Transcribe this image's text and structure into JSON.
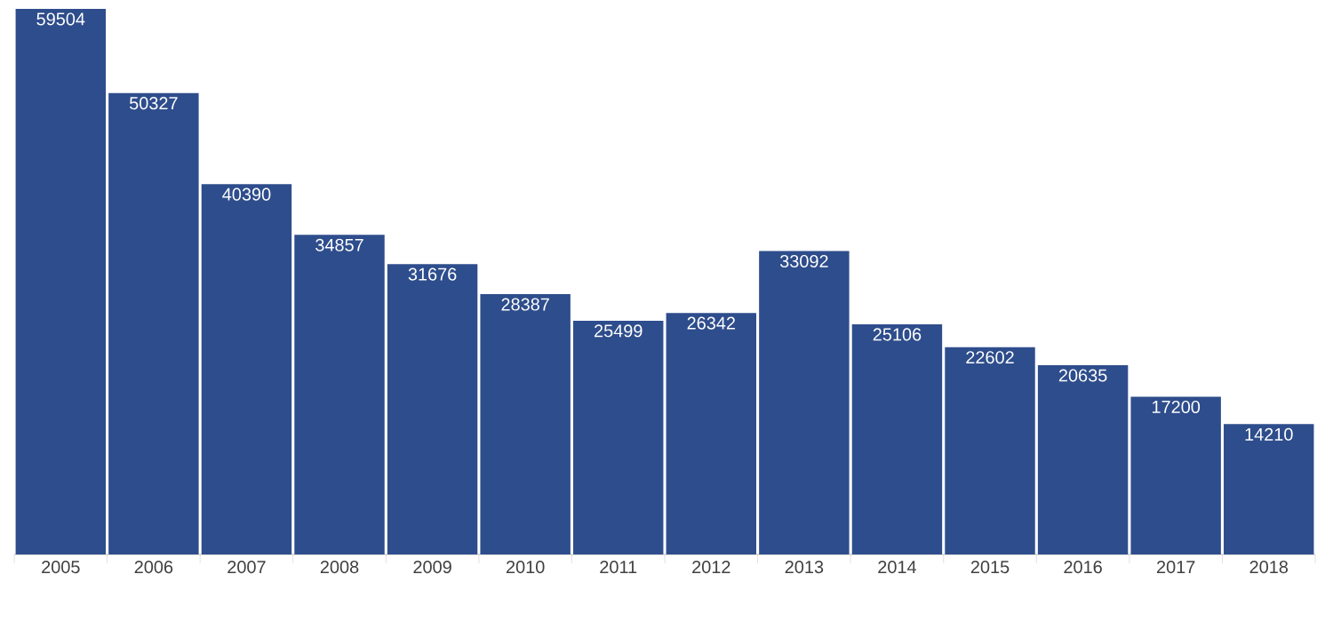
{
  "chart_data": {
    "type": "bar",
    "categories": [
      "2005",
      "2006",
      "2007",
      "2008",
      "2009",
      "2010",
      "2011",
      "2012",
      "2013",
      "2014",
      "2015",
      "2016",
      "2017",
      "2018"
    ],
    "values": [
      59504,
      50327,
      40390,
      34857,
      31676,
      28387,
      25499,
      26342,
      33092,
      25106,
      22602,
      20635,
      17200,
      14210
    ],
    "color": "#2e4d8c",
    "data_labels": true
  }
}
